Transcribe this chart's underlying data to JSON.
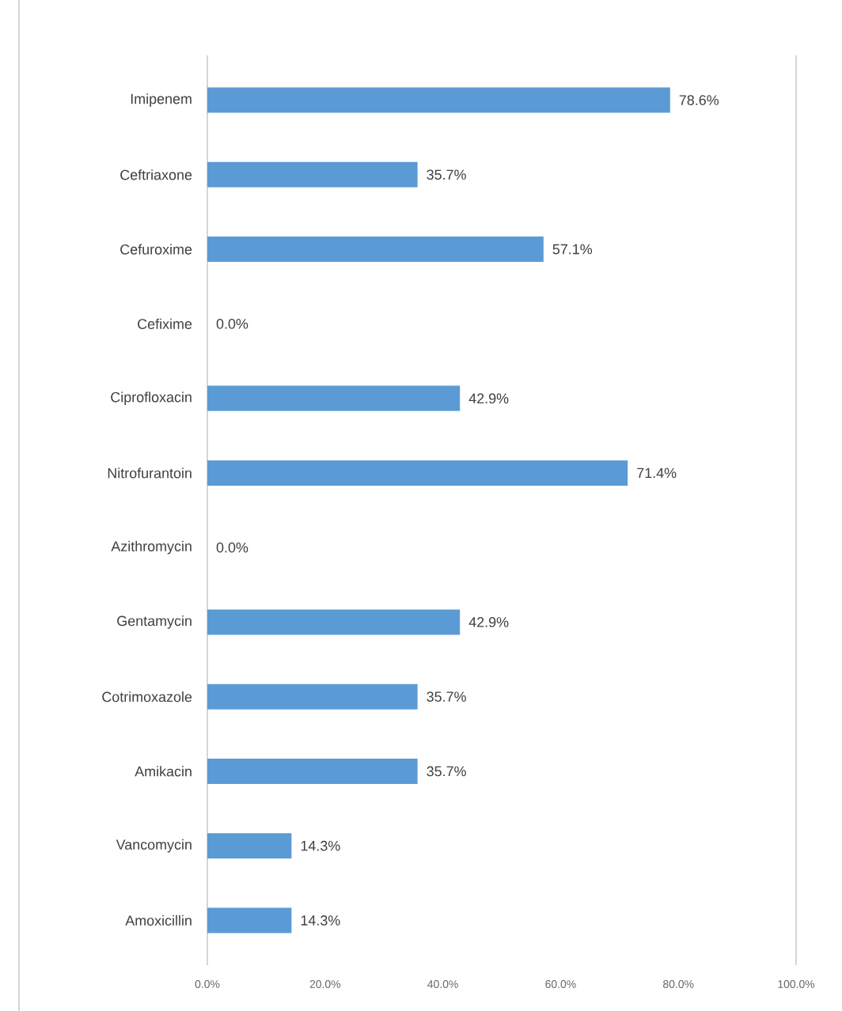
{
  "chart_data": {
    "type": "bar",
    "orientation": "horizontal",
    "categories": [
      "Imipenem",
      "Ceftriaxone",
      "Cefuroxime",
      "Cefixime",
      "Ciprofloxacin",
      "Nitrofurantoin",
      "Azithromycin",
      "Gentamycin",
      "Cotrimoxazole",
      "Amikacin",
      "Vancomycin",
      "Amoxicillin"
    ],
    "values": [
      78.6,
      35.7,
      57.1,
      0.0,
      42.9,
      71.4,
      0.0,
      42.9,
      35.7,
      35.7,
      14.3,
      14.3
    ],
    "value_labels": [
      "78.6%",
      "35.7%",
      "57.1%",
      "0.0%",
      "42.9%",
      "71.4%",
      "0.0%",
      "42.9%",
      "35.7%",
      "35.7%",
      "14.3%",
      "14.3%"
    ],
    "color": "#5b9bd5",
    "xlim": [
      0,
      100
    ],
    "xticks": [
      {
        "value": 0,
        "label": "0.0%"
      },
      {
        "value": 20,
        "label": "20.0%"
      },
      {
        "value": 40,
        "label": "40.0%"
      },
      {
        "value": 60,
        "label": "60.0%"
      },
      {
        "value": 80,
        "label": "80.0%"
      },
      {
        "value": 100,
        "label": "100.0%"
      }
    ],
    "grid": false
  }
}
